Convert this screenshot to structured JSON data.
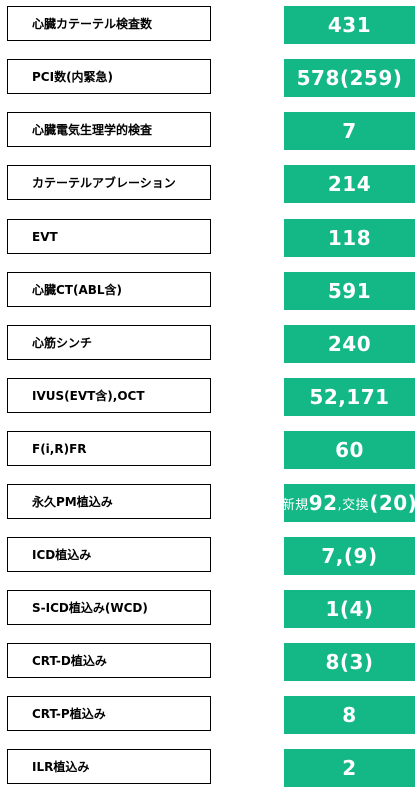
{
  "colors": {
    "value_bg": "#13b886",
    "value_text": "#ffffff",
    "label_border": "#000000"
  },
  "rows": [
    {
      "label": "心臓カテーテル検査数",
      "value": "431"
    },
    {
      "label": "PCI数(内緊急)",
      "value": "578(259)"
    },
    {
      "label": "心臓電気生理学的検査",
      "value": "7"
    },
    {
      "label": "カテーテルアブレーション",
      "value": "214"
    },
    {
      "label": "EVT",
      "value": "118"
    },
    {
      "label": "心臓CT(ABL含)",
      "value": "591"
    },
    {
      "label": "心筋シンチ",
      "value": "240"
    },
    {
      "label": "IVUS(EVT含),OCT",
      "value": "52,171"
    },
    {
      "label": "F(i,R)FR",
      "value": "60"
    },
    {
      "label": "永久PM植込み",
      "value_parts": {
        "prefix": "新規",
        "new": "92",
        "middle": ",交換",
        "exchange": "(20)"
      }
    },
    {
      "label": "ICD植込み",
      "value": "7,(9)"
    },
    {
      "label": "S-ICD植込み(WCD)",
      "value": "1(4)"
    },
    {
      "label": "CRT-D植込み",
      "value": "8(3)"
    },
    {
      "label": "CRT-P植込み",
      "value": "8"
    },
    {
      "label": "ILR植込み",
      "value": "2"
    }
  ]
}
